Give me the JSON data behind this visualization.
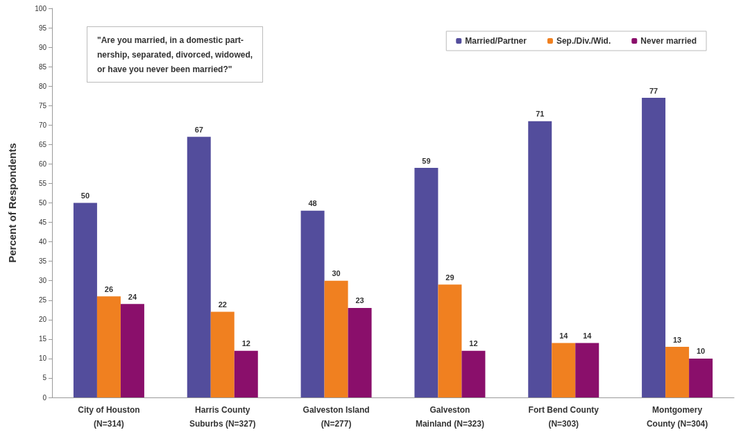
{
  "chart_data": {
    "type": "bar",
    "ylabel": "Percent of Respondents",
    "categories": [
      "City of Houston\n(N=314)",
      "Harris County\nSuburbs (N=327)",
      "Galveston Island\n(N=277)",
      "Galveston\nMainland (N=323)",
      "Fort Bend County\n(N=303)",
      "Montgomery\nCounty (N=304)"
    ],
    "series": [
      {
        "name": "Married/Partner",
        "color": "#534d9c",
        "values": [
          50,
          67,
          48,
          59,
          71,
          77
        ]
      },
      {
        "name": "Sep./Div./Wid.",
        "color": "#f08020",
        "values": [
          26,
          22,
          30,
          29,
          14,
          13
        ]
      },
      {
        "name": "Never married",
        "color": "#8a0f6b",
        "values": [
          24,
          12,
          23,
          12,
          14,
          10
        ]
      }
    ],
    "ylim": [
      0,
      100
    ],
    "yticks": [
      0,
      5,
      10,
      15,
      20,
      25,
      30,
      35,
      40,
      45,
      50,
      55,
      60,
      65,
      70,
      75,
      80,
      85,
      90,
      95,
      100
    ],
    "annotations": [
      "\"Are you married, in a domestic part-\nnership, separated, divorced, widowed,\nor have you never been married?\""
    ],
    "data_labels": true,
    "legend": "top right",
    "grid": false
  }
}
